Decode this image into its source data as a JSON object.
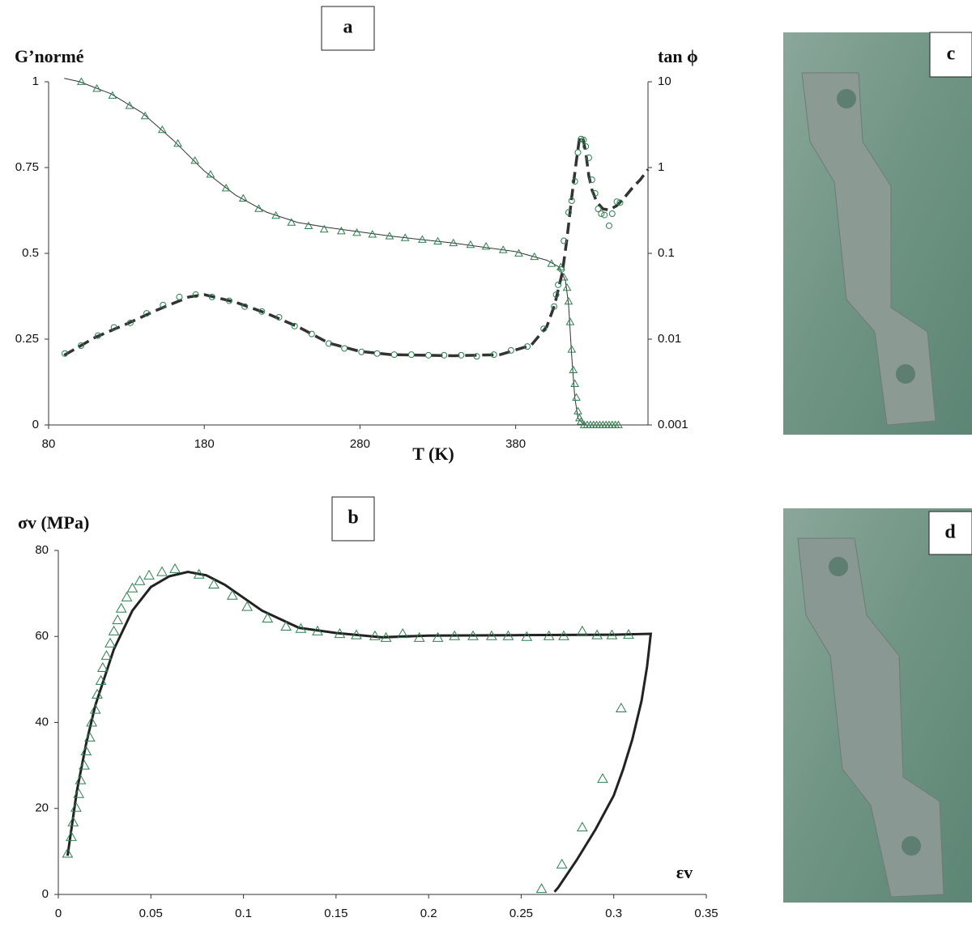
{
  "chart_data": [
    {
      "type": "line",
      "title": "a",
      "y_label": "G’normé",
      "y2_label": "tan ϕ",
      "x_label": "T (K)",
      "xlim": [
        80,
        465
      ],
      "xticks": [
        80,
        180,
        280,
        380
      ],
      "ylim": [
        0,
        1
      ],
      "yticks": [
        0,
        0.25,
        0.5,
        0.75,
        1
      ],
      "y2lim": [
        0.001,
        10
      ],
      "y2ticks": [
        0.001,
        0.01,
        0.1,
        1,
        10
      ],
      "y2scale": "log",
      "grid": false,
      "series": [
        {
          "mark": "line",
          "line_style": "solid",
          "color": "#333333",
          "x": [
            90,
            100,
            120,
            140,
            160,
            180,
            200,
            220,
            240,
            260,
            300,
            340,
            380,
            400,
            408,
            412,
            414,
            416,
            418,
            420,
            424,
            446
          ],
          "values": [
            1.01,
            1.0,
            0.965,
            0.91,
            0.83,
            0.74,
            0.67,
            0.62,
            0.59,
            0.575,
            0.55,
            0.53,
            0.505,
            0.48,
            0.46,
            0.42,
            0.35,
            0.2,
            0.08,
            0.02,
            0,
            0
          ]
        },
        {
          "mark": "triangle",
          "color": "#2e7d4f",
          "x": [
            101,
            111,
            121,
            132,
            142,
            153,
            163,
            174,
            184,
            194,
            205,
            215,
            226,
            236,
            247,
            257,
            268,
            278,
            288,
            299,
            309,
            320,
            330,
            340,
            351,
            361,
            372,
            382,
            392,
            403,
            409,
            411,
            413,
            414,
            415,
            416,
            417,
            418,
            419,
            420,
            421,
            422,
            424,
            426,
            428,
            430,
            432,
            434,
            436,
            438,
            440,
            442,
            444,
            446
          ],
          "values": [
            1.0,
            0.98,
            0.96,
            0.93,
            0.9,
            0.86,
            0.82,
            0.77,
            0.73,
            0.69,
            0.66,
            0.63,
            0.61,
            0.59,
            0.58,
            0.57,
            0.565,
            0.56,
            0.555,
            0.55,
            0.545,
            0.54,
            0.535,
            0.53,
            0.525,
            0.52,
            0.51,
            0.5,
            0.49,
            0.47,
            0.46,
            0.43,
            0.4,
            0.36,
            0.3,
            0.22,
            0.16,
            0.12,
            0.08,
            0.04,
            0.02,
            0.01,
            0,
            0,
            0,
            0,
            0,
            0,
            0,
            0,
            0,
            0,
            0,
            0
          ]
        },
        {
          "mark": "line",
          "line_style": "dashed",
          "color": "#333333",
          "axis": "y2",
          "x": [
            90,
            110,
            130,
            150,
            170,
            180,
            200,
            220,
            240,
            260,
            280,
            300,
            340,
            370,
            390,
            400,
            405,
            410,
            413,
            416,
            419,
            421,
            423,
            425,
            427,
            429,
            432,
            436,
            440,
            445,
            450,
            455,
            460,
            465
          ],
          "values": [
            0.0065,
            0.0105,
            0.015,
            0.022,
            0.031,
            0.033,
            0.027,
            0.02,
            0.014,
            0.009,
            0.0072,
            0.0066,
            0.0064,
            0.0066,
            0.0085,
            0.014,
            0.025,
            0.06,
            0.15,
            0.45,
            1.2,
            2.2,
            2.3,
            1.5,
            0.8,
            0.55,
            0.4,
            0.33,
            0.32,
            0.36,
            0.45,
            0.58,
            0.72,
            0.95
          ]
        },
        {
          "mark": "circle",
          "color": "#2e7d4f",
          "axis": "y2",
          "x": [
            90.4,
            100.8,
            111.7,
            122,
            132.5,
            143,
            153.5,
            164,
            174.5,
            185,
            196,
            206,
            217,
            228,
            238,
            249,
            260,
            270,
            281,
            291,
            302,
            313,
            324,
            334,
            345,
            355,
            366,
            377,
            387.5,
            398,
            404.7,
            406,
            407.3,
            409.4,
            411,
            414,
            416,
            418,
            420,
            422,
            423.6,
            425,
            427,
            429,
            431,
            433,
            435,
            437,
            440,
            442,
            445,
            447
          ],
          "values": [
            0.0068,
            0.0084,
            0.011,
            0.0137,
            0.0155,
            0.02,
            0.025,
            0.031,
            0.033,
            0.031,
            0.028,
            0.024,
            0.021,
            0.018,
            0.0142,
            0.0115,
            0.0089,
            0.0078,
            0.0071,
            0.0068,
            0.0066,
            0.0066,
            0.0065,
            0.0065,
            0.0065,
            0.0063,
            0.0066,
            0.0074,
            0.0082,
            0.0132,
            0.024,
            0.033,
            0.043,
            0.065,
            0.14,
            0.3,
            0.41,
            0.69,
            1.5,
            2.15,
            2.1,
            1.76,
            1.3,
            0.72,
            0.5,
            0.33,
            0.29,
            0.28,
            0.21,
            0.29,
            0.4,
            0.39
          ]
        }
      ]
    },
    {
      "type": "line",
      "title": "b",
      "y_label": "σv (MPa)",
      "x_label": "εv",
      "xlim": [
        0,
        0.35
      ],
      "xticks": [
        0,
        0.05,
        0.1,
        0.15,
        0.2,
        0.25,
        0.3,
        0.35
      ],
      "ylim": [
        0,
        80
      ],
      "yticks": [
        0,
        20,
        40,
        60,
        80
      ],
      "grid": false,
      "series": [
        {
          "mark": "line",
          "line_style": "solid",
          "color": "#222222",
          "x": [
            0.005,
            0.01,
            0.015,
            0.02,
            0.03,
            0.04,
            0.05,
            0.06,
            0.07,
            0.08,
            0.09,
            0.1,
            0.11,
            0.12,
            0.13,
            0.15,
            0.175,
            0.2,
            0.25,
            0.3,
            0.32,
            0.318,
            0.315,
            0.31,
            0.305,
            0.3,
            0.29,
            0.28,
            0.27,
            0.268
          ],
          "values": [
            9,
            24,
            35,
            44,
            57,
            66,
            71.5,
            74,
            75,
            74.2,
            72,
            69,
            66,
            64,
            62,
            60.8,
            59.8,
            60.2,
            60.3,
            60.4,
            60.6,
            53,
            45,
            36,
            29,
            23,
            15,
            8,
            1.6,
            0.6
          ]
        },
        {
          "mark": "triangle",
          "color": "#2e7d4f",
          "x": [
            0.005,
            0.007,
            0.008,
            0.0096,
            0.011,
            0.012,
            0.014,
            0.015,
            0.017,
            0.018,
            0.02,
            0.021,
            0.023,
            0.024,
            0.026,
            0.028,
            0.03,
            0.032,
            0.034,
            0.037,
            0.04,
            0.044,
            0.049,
            0.056,
            0.063,
            0.076,
            0.084,
            0.094,
            0.102,
            0.113,
            0.123,
            0.131,
            0.14,
            0.152,
            0.161,
            0.171,
            0.177,
            0.186,
            0.195,
            0.205,
            0.214,
            0.224,
            0.234,
            0.243,
            0.253,
            0.265,
            0.273,
            0.283,
            0.291,
            0.299,
            0.308,
            0.261,
            0.272,
            0.283,
            0.294,
            0.304
          ],
          "values": [
            9.5,
            13.4,
            16.8,
            20.2,
            23.4,
            26.6,
            30,
            33.3,
            36.5,
            40,
            43,
            46.5,
            49.7,
            52.7,
            55.5,
            58.4,
            61.2,
            63.8,
            66.5,
            69.1,
            71.2,
            72.9,
            74.2,
            75,
            75.7,
            74.4,
            72.1,
            69.5,
            66.9,
            64.2,
            62.3,
            61.8,
            61.2,
            60.6,
            60.3,
            60.1,
            59.7,
            60.6,
            59.7,
            59.7,
            60.1,
            60.1,
            60.1,
            60.1,
            59.9,
            60.1,
            60.1,
            61.2,
            60.3,
            60.3,
            60.4,
            1.3,
            7,
            15.6,
            26.9,
            43.3
          ]
        }
      ]
    }
  ],
  "photo_labels": [
    "c",
    "d"
  ]
}
